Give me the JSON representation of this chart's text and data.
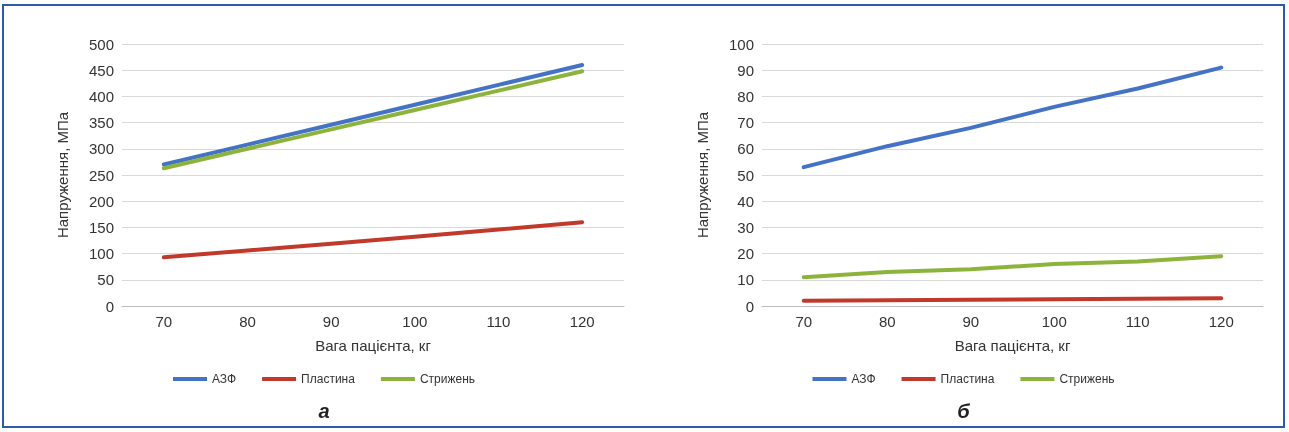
{
  "chart_data": [
    {
      "type": "line",
      "title": "а",
      "xlabel": "Вага пацієнта, кг",
      "ylabel": "Напруження, МПа",
      "categories": [
        "70",
        "80",
        "90",
        "100",
        "110",
        "120"
      ],
      "ylim": [
        0,
        500
      ],
      "yticks": [
        0,
        50,
        100,
        150,
        200,
        250,
        300,
        350,
        400,
        450,
        500
      ],
      "grid": "y",
      "legend": "bottom",
      "marker": "none",
      "series": [
        {
          "name": "АЗФ",
          "color": "#4472c4",
          "values": [
            270,
            308,
            346,
            384,
            422,
            460
          ]
        },
        {
          "name": "Пластина",
          "color": "#c0392b",
          "values": [
            93,
            106,
            119,
            132,
            146,
            160
          ]
        },
        {
          "name": "Стрижень",
          "color": "#8cb43c",
          "values": [
            263,
            300,
            337,
            374,
            411,
            448
          ]
        }
      ]
    },
    {
      "type": "line",
      "title": "б",
      "xlabel": "Вага пацієнта, кг",
      "ylabel": "Напруження, МПа",
      "categories": [
        "70",
        "80",
        "90",
        "100",
        "110",
        "120"
      ],
      "ylim": [
        0,
        100
      ],
      "yticks": [
        0,
        10,
        20,
        30,
        40,
        50,
        60,
        70,
        80,
        90,
        100
      ],
      "grid": "y",
      "legend": "bottom",
      "marker": "none",
      "series": [
        {
          "name": "АЗФ",
          "color": "#4472c4",
          "values": [
            53,
            61,
            68,
            76,
            83,
            91
          ]
        },
        {
          "name": "Пластина",
          "color": "#c0392b",
          "values": [
            2,
            2.2,
            2.4,
            2.6,
            2.8,
            3
          ]
        },
        {
          "name": "Стрижень",
          "color": "#8cb43c",
          "values": [
            11,
            13,
            14,
            16,
            17,
            19
          ]
        }
      ]
    }
  ]
}
